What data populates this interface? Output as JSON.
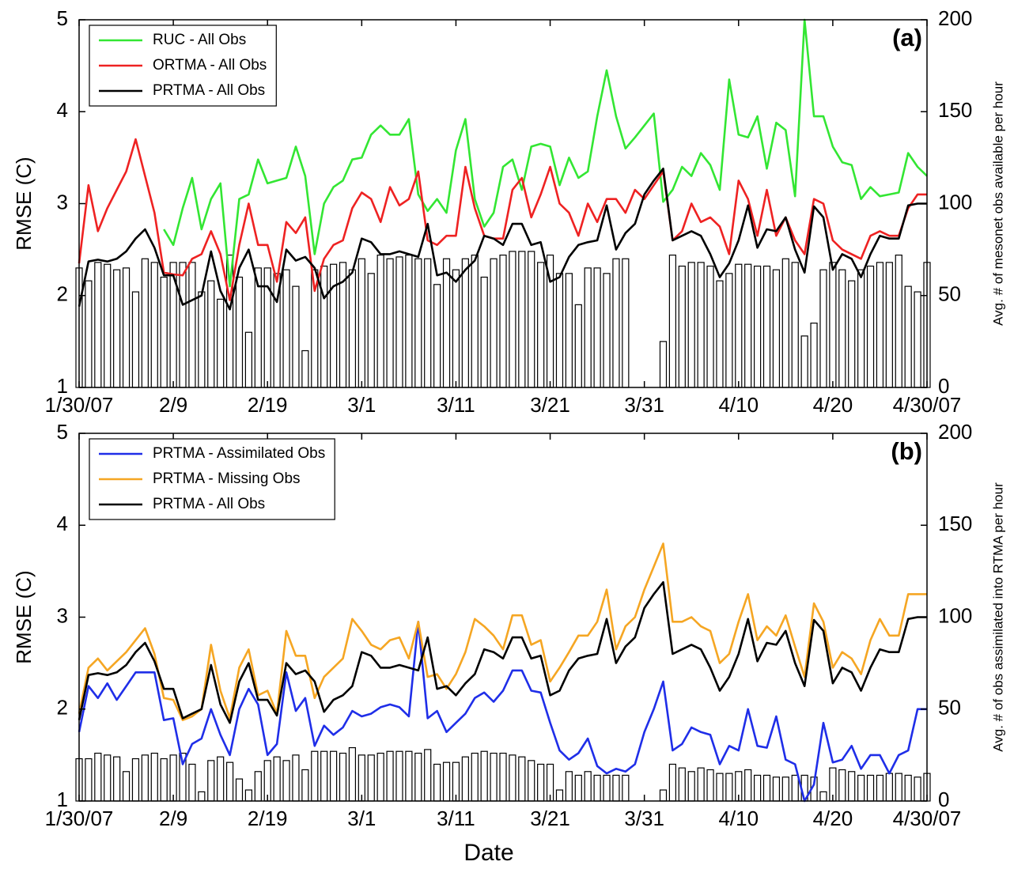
{
  "chart_data": [
    {
      "type": "line",
      "panel_label": "(a)",
      "ylabel": "RMSE (C)",
      "y2label": "Avg. # of mesonet obs available per hour",
      "x": [
        0,
        1,
        2,
        3,
        4,
        5,
        6,
        7,
        8,
        9,
        10,
        11,
        12,
        13,
        14,
        15,
        16,
        17,
        18,
        19,
        20,
        21,
        22,
        23,
        24,
        25,
        26,
        27,
        28,
        29,
        30,
        31,
        32,
        33,
        34,
        35,
        36,
        37,
        38,
        39,
        40,
        41,
        42,
        43,
        44,
        45,
        46,
        47,
        48,
        49,
        50,
        51,
        52,
        53,
        54,
        55,
        56,
        57,
        58,
        59,
        60,
        61,
        62,
        63,
        64,
        65,
        66,
        67,
        68,
        69,
        70,
        71,
        72,
        73,
        74,
        75,
        76,
        77,
        78,
        79,
        80,
        81,
        82,
        83,
        84,
        85,
        86,
        87,
        88,
        89,
        90
      ],
      "xlim": [
        0,
        90
      ],
      "xticks": [
        {
          "value": 0,
          "label": "1/30/07"
        },
        {
          "value": 10,
          "label": "2/9"
        },
        {
          "value": 20,
          "label": "2/19"
        },
        {
          "value": 30,
          "label": "3/1"
        },
        {
          "value": 40,
          "label": "3/11"
        },
        {
          "value": 50,
          "label": "3/21"
        },
        {
          "value": 60,
          "label": "3/31"
        },
        {
          "value": 70,
          "label": "4/10"
        },
        {
          "value": 80,
          "label": "4/20"
        },
        {
          "value": 90,
          "label": "4/30/07"
        }
      ],
      "ylim": [
        1,
        5
      ],
      "yticks": [
        1,
        2,
        3,
        4,
        5
      ],
      "y2lim": [
        0,
        200
      ],
      "y2ticks": [
        0,
        50,
        100,
        150,
        200
      ],
      "legend": "upper left",
      "series": [
        {
          "type": "bar",
          "axis": "y2",
          "color": "#ffffff",
          "values": [
            65,
            58,
            68,
            67,
            64,
            65,
            52,
            70,
            68,
            60,
            68,
            68,
            68,
            52,
            58,
            48,
            72,
            60,
            30,
            65,
            65,
            62,
            64,
            55,
            20,
            64,
            66,
            67,
            68,
            64,
            70,
            62,
            72,
            70,
            71,
            72,
            70,
            70,
            56,
            70,
            64,
            70,
            72,
            60,
            70,
            72,
            74,
            74,
            74,
            68,
            72,
            62,
            62,
            45,
            65,
            65,
            62,
            70,
            70,
            0,
            0,
            0,
            25,
            72,
            66,
            68,
            68,
            66,
            58,
            62,
            67,
            67,
            66,
            66,
            64,
            70,
            68,
            28,
            35,
            64,
            68,
            64,
            58,
            64,
            66,
            68,
            68,
            72,
            55,
            52,
            68
          ]
        },
        {
          "name": "RUC - All Obs",
          "color": "#33e633",
          "values": [
            null,
            null,
            null,
            null,
            null,
            null,
            null,
            null,
            null,
            2.72,
            2.55,
            2.95,
            3.28,
            2.72,
            3.05,
            3.22,
            2.1,
            3.05,
            3.1,
            3.48,
            3.22,
            3.25,
            3.28,
            3.62,
            3.3,
            2.45,
            3.0,
            3.18,
            3.25,
            3.48,
            3.5,
            3.75,
            3.85,
            3.75,
            3.75,
            3.92,
            3.1,
            2.92,
            3.05,
            2.9,
            3.58,
            3.92,
            3.05,
            2.75,
            2.9,
            3.4,
            3.48,
            3.15,
            3.62,
            3.65,
            3.62,
            3.2,
            3.5,
            3.28,
            3.35,
            3.95,
            4.45,
            3.95,
            3.6,
            3.72,
            3.85,
            3.98,
            3.02,
            3.15,
            3.4,
            3.3,
            3.55,
            3.42,
            3.15,
            4.35,
            3.75,
            3.72,
            3.95,
            3.38,
            3.88,
            3.8,
            3.08,
            5.0,
            3.95,
            3.95,
            3.62,
            3.45,
            3.42,
            3.05,
            3.18,
            3.08,
            3.1,
            3.12,
            3.55,
            3.4,
            3.3
          ]
        },
        {
          "name": "ORTMA - All Obs",
          "color": "#ee2222",
          "values": [
            2.35,
            3.2,
            2.7,
            2.95,
            3.15,
            3.35,
            3.7,
            3.3,
            2.9,
            2.25,
            2.23,
            2.22,
            2.4,
            2.45,
            2.7,
            2.45,
            1.95,
            2.55,
            3.0,
            2.55,
            2.55,
            2.15,
            2.8,
            2.68,
            2.85,
            2.05,
            2.4,
            2.55,
            2.6,
            2.95,
            3.12,
            3.05,
            2.8,
            3.18,
            2.98,
            3.05,
            3.35,
            2.6,
            2.55,
            2.65,
            2.65,
            3.4,
            2.95,
            2.65,
            2.62,
            2.62,
            3.15,
            3.28,
            2.85,
            3.1,
            3.4,
            3.0,
            2.9,
            2.65,
            3.0,
            2.8,
            3.05,
            3.05,
            2.9,
            3.15,
            3.05,
            3.2,
            3.35,
            2.6,
            2.7,
            3.0,
            2.8,
            2.85,
            2.75,
            2.45,
            3.25,
            3.05,
            2.65,
            3.15,
            2.65,
            2.85,
            2.6,
            2.45,
            3.05,
            3.0,
            2.6,
            2.5,
            2.45,
            2.4,
            2.65,
            2.7,
            2.65,
            2.65,
            2.95,
            3.1,
            3.1
          ]
        },
        {
          "name": "PRTMA - All Obs",
          "color": "#000000",
          "values": [
            1.88,
            2.37,
            2.39,
            2.37,
            2.4,
            2.48,
            2.62,
            2.72,
            2.52,
            2.22,
            2.22,
            1.9,
            1.95,
            2.0,
            2.48,
            2.05,
            1.85,
            2.3,
            2.5,
            2.1,
            2.1,
            1.93,
            2.5,
            2.38,
            2.42,
            2.3,
            1.97,
            2.1,
            2.15,
            2.25,
            2.62,
            2.58,
            2.45,
            2.45,
            2.48,
            2.45,
            2.42,
            2.78,
            2.22,
            2.25,
            2.15,
            2.28,
            2.38,
            2.65,
            2.62,
            2.55,
            2.78,
            2.78,
            2.55,
            2.58,
            2.15,
            2.2,
            2.42,
            2.55,
            2.58,
            2.6,
            2.98,
            2.5,
            2.68,
            2.78,
            3.1,
            3.25,
            3.38,
            2.6,
            2.65,
            2.7,
            2.65,
            2.45,
            2.2,
            2.35,
            2.6,
            2.98,
            2.52,
            2.72,
            2.7,
            2.85,
            2.5,
            2.25,
            2.97,
            2.85,
            2.28,
            2.45,
            2.4,
            2.2,
            2.45,
            2.65,
            2.62,
            2.62,
            2.98,
            3.0,
            3.0
          ]
        }
      ]
    },
    {
      "type": "line",
      "panel_label": "(b)",
      "ylabel": "RMSE (C)",
      "y2label": "Avg. # of obs assimilated into RTMA per hour",
      "xlabel": "Date",
      "x": [
        0,
        1,
        2,
        3,
        4,
        5,
        6,
        7,
        8,
        9,
        10,
        11,
        12,
        13,
        14,
        15,
        16,
        17,
        18,
        19,
        20,
        21,
        22,
        23,
        24,
        25,
        26,
        27,
        28,
        29,
        30,
        31,
        32,
        33,
        34,
        35,
        36,
        37,
        38,
        39,
        40,
        41,
        42,
        43,
        44,
        45,
        46,
        47,
        48,
        49,
        50,
        51,
        52,
        53,
        54,
        55,
        56,
        57,
        58,
        59,
        60,
        61,
        62,
        63,
        64,
        65,
        66,
        67,
        68,
        69,
        70,
        71,
        72,
        73,
        74,
        75,
        76,
        77,
        78,
        79,
        80,
        81,
        82,
        83,
        84,
        85,
        86,
        87,
        88,
        89,
        90
      ],
      "xlim": [
        0,
        90
      ],
      "xticks": [
        {
          "value": 0,
          "label": "1/30/07"
        },
        {
          "value": 10,
          "label": "2/9"
        },
        {
          "value": 20,
          "label": "2/19"
        },
        {
          "value": 30,
          "label": "3/1"
        },
        {
          "value": 40,
          "label": "3/11"
        },
        {
          "value": 50,
          "label": "3/21"
        },
        {
          "value": 60,
          "label": "3/31"
        },
        {
          "value": 70,
          "label": "4/10"
        },
        {
          "value": 80,
          "label": "4/20"
        },
        {
          "value": 90,
          "label": "4/30/07"
        }
      ],
      "ylim": [
        1,
        5
      ],
      "yticks": [
        1,
        2,
        3,
        4,
        5
      ],
      "y2lim": [
        0,
        200
      ],
      "y2ticks": [
        0,
        50,
        100,
        150,
        200
      ],
      "legend": "upper left",
      "series": [
        {
          "type": "bar",
          "axis": "y2",
          "color": "#ffffff",
          "values": [
            23,
            23,
            26,
            25,
            24,
            16,
            23,
            25,
            26,
            23,
            25,
            26,
            20,
            5,
            22,
            24,
            21,
            12,
            6,
            16,
            22,
            24,
            22,
            25,
            17,
            27,
            27,
            27,
            26,
            29,
            25,
            25,
            26,
            27,
            27,
            27,
            26,
            28,
            20,
            21,
            21,
            24,
            26,
            27,
            26,
            26,
            25,
            24,
            22,
            20,
            20,
            6,
            16,
            14,
            16,
            14,
            14,
            14,
            14,
            0,
            0,
            0,
            6,
            20,
            18,
            16,
            18,
            17,
            15,
            15,
            16,
            17,
            14,
            14,
            13,
            13,
            14,
            14,
            13,
            5,
            18,
            17,
            16,
            14,
            14,
            14,
            15,
            15,
            14,
            13,
            15
          ]
        },
        {
          "name": "PRTMA - Assimilated Obs",
          "color": "#1f2ee8",
          "values": [
            1.75,
            2.25,
            2.12,
            2.28,
            2.1,
            2.25,
            2.4,
            2.4,
            2.4,
            1.88,
            1.9,
            1.4,
            1.62,
            1.68,
            2.0,
            1.72,
            1.5,
            2.0,
            2.22,
            2.05,
            1.5,
            1.62,
            2.4,
            1.98,
            2.12,
            1.6,
            1.82,
            1.72,
            1.8,
            1.98,
            1.92,
            1.95,
            2.02,
            2.05,
            2.02,
            1.92,
            2.95,
            1.9,
            1.98,
            1.75,
            1.85,
            1.95,
            2.12,
            2.18,
            2.08,
            2.2,
            2.42,
            2.42,
            2.2,
            2.18,
            1.85,
            1.55,
            1.45,
            1.52,
            1.68,
            1.38,
            1.3,
            1.35,
            1.32,
            1.4,
            1.75,
            2.0,
            2.3,
            1.55,
            1.62,
            1.8,
            1.75,
            1.72,
            1.4,
            1.6,
            1.55,
            2.0,
            1.6,
            1.58,
            1.92,
            1.45,
            1.4,
            1.0,
            1.18,
            1.85,
            1.42,
            1.45,
            1.6,
            1.35,
            1.5,
            1.5,
            1.3,
            1.5,
            1.55,
            2.0,
            2.0
          ]
        },
        {
          "name": "PRTMA - Missing Obs",
          "color": "#f5a623",
          "values": [
            1.95,
            2.45,
            2.55,
            2.42,
            2.52,
            2.62,
            2.75,
            2.88,
            2.6,
            2.12,
            2.1,
            1.88,
            1.92,
            2.0,
            2.7,
            2.2,
            1.9,
            2.45,
            2.65,
            2.15,
            2.2,
            1.95,
            2.85,
            2.58,
            2.58,
            2.12,
            2.35,
            2.45,
            2.55,
            2.98,
            2.85,
            2.7,
            2.65,
            2.75,
            2.78,
            2.55,
            2.95,
            2.35,
            2.38,
            2.22,
            2.38,
            2.62,
            2.98,
            2.9,
            2.8,
            2.65,
            3.02,
            3.02,
            2.7,
            2.75,
            2.3,
            2.45,
            2.62,
            2.8,
            2.8,
            2.95,
            3.3,
            2.65,
            2.9,
            3.0,
            3.3,
            3.55,
            3.8,
            2.95,
            2.95,
            3.0,
            2.9,
            2.85,
            2.5,
            2.6,
            2.95,
            3.25,
            2.75,
            2.9,
            2.8,
            3.02,
            2.68,
            2.35,
            3.15,
            2.95,
            2.45,
            2.62,
            2.55,
            2.38,
            2.75,
            2.98,
            2.8,
            2.8,
            3.25,
            3.25,
            3.25
          ]
        },
        {
          "name": "PRTMA - All Obs",
          "color": "#000000",
          "values": [
            1.88,
            2.37,
            2.39,
            2.37,
            2.4,
            2.48,
            2.62,
            2.72,
            2.52,
            2.22,
            2.22,
            1.9,
            1.95,
            2.0,
            2.48,
            2.05,
            1.85,
            2.3,
            2.5,
            2.1,
            2.1,
            1.93,
            2.5,
            2.38,
            2.42,
            2.3,
            1.97,
            2.1,
            2.15,
            2.25,
            2.62,
            2.58,
            2.45,
            2.45,
            2.48,
            2.45,
            2.42,
            2.78,
            2.22,
            2.25,
            2.15,
            2.28,
            2.38,
            2.65,
            2.62,
            2.55,
            2.78,
            2.78,
            2.55,
            2.58,
            2.15,
            2.2,
            2.42,
            2.55,
            2.58,
            2.6,
            2.98,
            2.5,
            2.68,
            2.78,
            3.1,
            3.25,
            3.38,
            2.6,
            2.65,
            2.7,
            2.65,
            2.45,
            2.2,
            2.35,
            2.6,
            2.98,
            2.52,
            2.72,
            2.7,
            2.85,
            2.5,
            2.25,
            2.97,
            2.85,
            2.28,
            2.45,
            2.4,
            2.2,
            2.45,
            2.65,
            2.62,
            2.62,
            2.98,
            3.0,
            3.0
          ]
        }
      ]
    }
  ]
}
